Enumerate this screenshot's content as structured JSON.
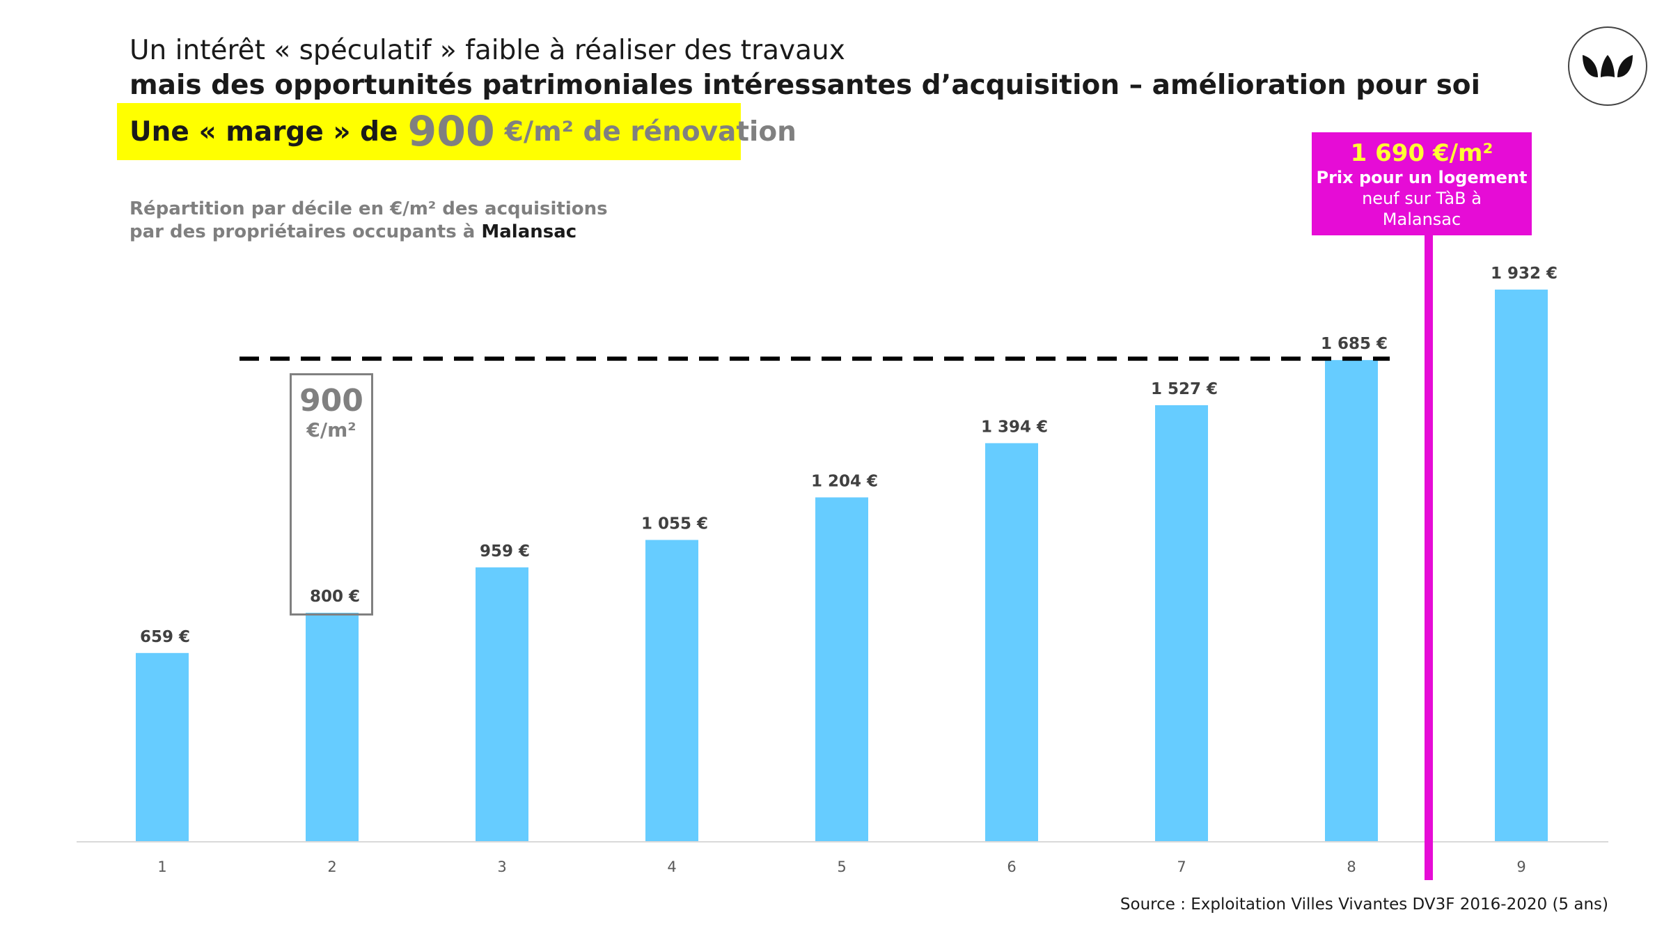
{
  "header": {
    "title_line1": "Un intérêt « spéculatif » faible à réaliser des travaux",
    "title_line2": "mais des opportunités patrimoniales intéressantes d’acquisition – amélioration pour soi",
    "highlight_prefix": "Une « marge » de",
    "highlight_number": "900",
    "highlight_suffix": "€/m² de rénovation"
  },
  "subtitle": {
    "line1": "Répartition par décile en €/m² des acquisitions",
    "line2_prefix": "par des propriétaires occupants à",
    "line2_place": "Malansac"
  },
  "callout": {
    "price": "1 690 €/m²",
    "line1": "Prix pour un logement",
    "line2": "neuf sur TàB à",
    "line3": "Malansac",
    "color": "#e60cd6",
    "value": 1690
  },
  "marge_box": {
    "number": "900",
    "unit": "€/m²"
  },
  "source": "Source : Exploitation Villes Vivantes  DV3F 2016-2020 (5 ans)",
  "logo": {
    "icon": "leaves-logo-icon"
  },
  "chart_data": {
    "type": "bar",
    "categories": [
      "1",
      "2",
      "3",
      "4",
      "5",
      "6",
      "7",
      "8",
      "9"
    ],
    "values": [
      659,
      800,
      959,
      1055,
      1204,
      1394,
      1527,
      1685,
      1932
    ],
    "data_labels": [
      "659 €",
      "800 €",
      "959 €",
      "1 055 €",
      "1 204 €",
      "1 394 €",
      "1 527 €",
      "1 685 €",
      "1 932 €"
    ],
    "bar_color": "#66ccff",
    "reference_line": {
      "value": 1685,
      "style": "dashed",
      "color": "#000000"
    },
    "ylim": [
      0,
      2000
    ],
    "grid": false,
    "xlabel": "",
    "ylabel": ""
  }
}
